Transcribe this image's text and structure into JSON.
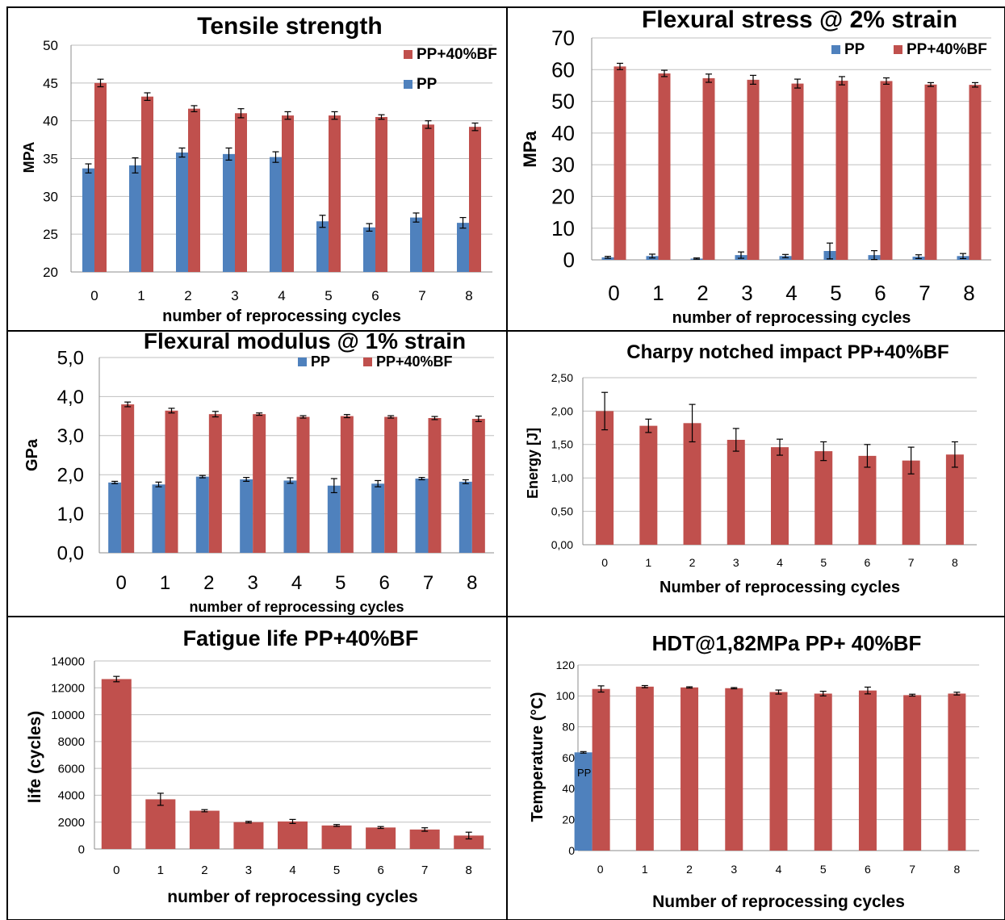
{
  "chart_data": [
    {
      "type": "bar",
      "title": "Tensile strength",
      "xlabel": "number of reprocessing cycles",
      "ylabel": "MPA",
      "categories": [
        "0",
        "1",
        "2",
        "3",
        "4",
        "5",
        "6",
        "7",
        "8"
      ],
      "yticks": [
        "50",
        "45",
        "40",
        "35",
        "30",
        "25",
        "20"
      ],
      "ylim": [
        20,
        50
      ],
      "grid": true,
      "legend": "top-right",
      "series": [
        {
          "name": "PP+40%BF",
          "color": "#c0504d",
          "values": [
            45,
            43.2,
            41.6,
            41,
            40.7,
            40.7,
            40.5,
            39.5,
            39.2
          ],
          "errors": [
            0.5,
            0.5,
            0.4,
            0.6,
            0.5,
            0.5,
            0.3,
            0.5,
            0.5
          ]
        },
        {
          "name": "PP",
          "color": "#4f81bd",
          "values": [
            33.7,
            34.1,
            35.8,
            35.6,
            35.2,
            26.7,
            25.9,
            27.2,
            26.5
          ],
          "errors": [
            0.6,
            1.0,
            0.6,
            0.8,
            0.7,
            0.8,
            0.5,
            0.6,
            0.7
          ]
        }
      ]
    },
    {
      "type": "bar",
      "title": "Flexural stress @ 2% strain",
      "xlabel": "number of reprocessing cycles",
      "ylabel": "MPa",
      "categories": [
        "0",
        "1",
        "2",
        "3",
        "4",
        "5",
        "6",
        "7",
        "8"
      ],
      "yticks": [
        "70",
        "60",
        "50",
        "40",
        "30",
        "20",
        "10",
        "0"
      ],
      "ylim": [
        0,
        70
      ],
      "grid": true,
      "legend": "top-right",
      "series": [
        {
          "name": "PP",
          "color": "#4f81bd",
          "values": [
            0.8,
            1.2,
            0.4,
            1.5,
            1.2,
            2.8,
            1.5,
            1.0,
            1.2
          ],
          "errors": [
            0.3,
            0.6,
            0.2,
            1.0,
            0.5,
            2.5,
            1.4,
            0.6,
            0.8
          ]
        },
        {
          "name": "PP+40%BF",
          "color": "#c0504d",
          "values": [
            61,
            58.8,
            57.3,
            56.8,
            55.6,
            56.5,
            56.4,
            55.3,
            55.2
          ],
          "errors": [
            1.0,
            1.0,
            1.3,
            1.4,
            1.4,
            1.3,
            1.0,
            0.6,
            0.7
          ]
        }
      ]
    },
    {
      "type": "bar",
      "title": "Flexural modulus @ 1% strain",
      "xlabel": "number of reprocessing cycles",
      "ylabel": "GPa",
      "categories": [
        "0",
        "1",
        "2",
        "3",
        "4",
        "5",
        "6",
        "7",
        "8"
      ],
      "yticks": [
        "5,0",
        "4,0",
        "3,0",
        "2,0",
        "1,0",
        "0,0"
      ],
      "ylim": [
        0,
        5
      ],
      "grid": true,
      "legend": "top-right",
      "series": [
        {
          "name": "PP",
          "color": "#4f81bd",
          "values": [
            1.8,
            1.75,
            1.95,
            1.88,
            1.85,
            1.72,
            1.77,
            1.9,
            1.82
          ],
          "errors": [
            0.03,
            0.06,
            0.03,
            0.05,
            0.07,
            0.18,
            0.08,
            0.03,
            0.05
          ]
        },
        {
          "name": "PP+40%BF",
          "color": "#c0504d",
          "values": [
            3.8,
            3.64,
            3.55,
            3.55,
            3.48,
            3.5,
            3.48,
            3.45,
            3.43
          ],
          "errors": [
            0.06,
            0.06,
            0.07,
            0.03,
            0.03,
            0.04,
            0.03,
            0.04,
            0.07
          ]
        }
      ]
    },
    {
      "type": "bar",
      "title": "Charpy notched impact  PP+40%BF",
      "xlabel": "Number of reprocessing cycles",
      "ylabel": "Energy [J]",
      "categories": [
        "0",
        "1",
        "2",
        "3",
        "4",
        "5",
        "6",
        "7",
        "8"
      ],
      "yticks": [
        "2,50",
        "2,00",
        "1,50",
        "1,00",
        "0,50",
        "0,00"
      ],
      "ylim": [
        0,
        2.5
      ],
      "grid": true,
      "series": [
        {
          "name": "",
          "color": "#c0504d",
          "values": [
            2.0,
            1.78,
            1.82,
            1.57,
            1.46,
            1.4,
            1.33,
            1.26,
            1.35
          ],
          "errors": [
            0.28,
            0.1,
            0.28,
            0.17,
            0.12,
            0.14,
            0.17,
            0.2,
            0.19
          ]
        }
      ]
    },
    {
      "type": "bar",
      "title": "Fatigue life  PP+40%BF",
      "xlabel": "number of reprocessing cycles",
      "ylabel": "life (cycles)",
      "categories": [
        "0",
        "1",
        "2",
        "3",
        "4",
        "5",
        "6",
        "7",
        "8"
      ],
      "yticks": [
        "14000",
        "12000",
        "10000",
        "8000",
        "6000",
        "4000",
        "2000",
        "0"
      ],
      "ylim": [
        0,
        14000
      ],
      "grid": true,
      "series": [
        {
          "name": "",
          "color": "#c0504d",
          "values": [
            12650,
            3700,
            2850,
            2000,
            2050,
            1750,
            1600,
            1450,
            1000
          ],
          "errors": [
            200,
            450,
            80,
            60,
            150,
            70,
            70,
            130,
            250
          ]
        }
      ]
    },
    {
      "type": "bar",
      "title": "HDT@1,82MPa PP+ 40%BF",
      "xlabel": "Number of reprocessing cycles",
      "ylabel": "Temperature (°C)",
      "categories": [
        "0",
        "1",
        "2",
        "3",
        "4",
        "5",
        "6",
        "7",
        "8"
      ],
      "yticks": [
        "120",
        "100",
        "80",
        "60",
        "40",
        "20",
        "0"
      ],
      "ylim": [
        0,
        120
      ],
      "grid": true,
      "annotations": [
        "PP"
      ],
      "series": [
        {
          "name": "PP",
          "color": "#4f81bd",
          "values": [
            63.5,
            null,
            null,
            null,
            null,
            null,
            null,
            null,
            null
          ],
          "errors": [
            0.5,
            0,
            0,
            0,
            0,
            0,
            0,
            0,
            0
          ]
        },
        {
          "name": "PP+40%BF",
          "color": "#c0504d",
          "values": [
            104.5,
            106,
            105.5,
            105,
            102.5,
            101.5,
            103.5,
            100.5,
            101.5
          ],
          "errors": [
            2,
            0.7,
            0.4,
            0.4,
            1.3,
            1.5,
            2.2,
            0.6,
            0.9
          ]
        }
      ]
    }
  ]
}
